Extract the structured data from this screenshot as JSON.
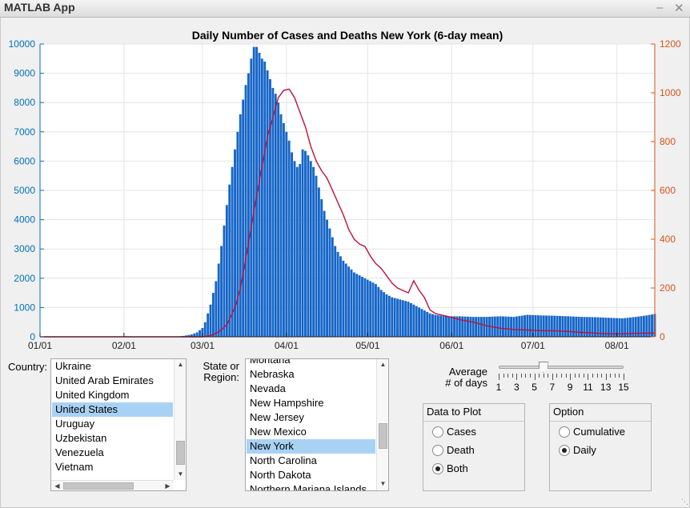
{
  "window": {
    "title": "MATLAB App",
    "minimize": "–",
    "close": "✕"
  },
  "colors": {
    "bars": "#1565c8",
    "deaths_line": "#c0103a",
    "left_axis": "#0072bd",
    "right_axis": "#d95319",
    "selected": "#a8d2f4"
  },
  "country": {
    "label": "Country:",
    "items": [
      "Ukraine",
      "United Arab Emirates",
      "United Kingdom",
      "United States",
      "Uruguay",
      "Uzbekistan",
      "Venezuela",
      "Vietnam"
    ],
    "selected": "United States"
  },
  "region": {
    "label_line1": "State or",
    "label_line2": "Region:",
    "items": [
      "Montana",
      "Nebraska",
      "Nevada",
      "New Hampshire",
      "New Jersey",
      "New Mexico",
      "New York",
      "North Carolina",
      "North Dakota",
      "Northern Mariana Islands"
    ],
    "selected": "New York"
  },
  "average": {
    "label_line1": "Average",
    "label_line2": "# of days",
    "value": 6,
    "min": 1,
    "max": 15,
    "tick_labels": [
      "1",
      "3",
      "5",
      "7",
      "9",
      "11",
      "13",
      "15"
    ]
  },
  "data_to_plot": {
    "title": "Data to Plot",
    "options": [
      "Cases",
      "Death",
      "Both"
    ],
    "selected": "Both"
  },
  "option": {
    "title": "Option",
    "options": [
      "Cumulative",
      "Daily"
    ],
    "selected": "Daily"
  },
  "chart_data": {
    "type": "bar",
    "title": "Daily Number of Cases and Deaths New York (6-day mean)",
    "xlabel": "",
    "x_ticks": [
      "01/01",
      "02/01",
      "03/01",
      "04/01",
      "05/01",
      "06/01",
      "07/01",
      "08/01"
    ],
    "x_range_days": [
      0,
      227
    ],
    "y_left": {
      "label": "",
      "range": [
        0,
        10000
      ],
      "ticks": [
        0,
        1000,
        2000,
        3000,
        4000,
        5000,
        6000,
        7000,
        8000,
        9000,
        10000
      ]
    },
    "y_right": {
      "label": "",
      "range": [
        0,
        1200
      ],
      "ticks": [
        0,
        200,
        400,
        600,
        800,
        1000,
        1200
      ]
    },
    "grid": true,
    "series": [
      {
        "type": "bar",
        "axis": "left",
        "points_day_value": [
          [
            0,
            0
          ],
          [
            50,
            0
          ],
          [
            53,
            30
          ],
          [
            56,
            80
          ],
          [
            58,
            150
          ],
          [
            60,
            300
          ],
          [
            61,
            500
          ],
          [
            62,
            800
          ],
          [
            63,
            1100
          ],
          [
            64,
            1500
          ],
          [
            65,
            1900
          ],
          [
            66,
            2500
          ],
          [
            67,
            3100
          ],
          [
            68,
            3800
          ],
          [
            69,
            4500
          ],
          [
            70,
            5200
          ],
          [
            71,
            5800
          ],
          [
            72,
            6400
          ],
          [
            73,
            7000
          ],
          [
            74,
            7600
          ],
          [
            75,
            8100
          ],
          [
            76,
            8600
          ],
          [
            77,
            9000
          ],
          [
            78,
            9500
          ],
          [
            79,
            9900
          ],
          [
            80,
            9900
          ],
          [
            81,
            9700
          ],
          [
            82,
            9500
          ],
          [
            83,
            9400
          ],
          [
            84,
            9100
          ],
          [
            85,
            8800
          ],
          [
            86,
            8500
          ],
          [
            87,
            8300
          ],
          [
            88,
            8000
          ],
          [
            89,
            7600
          ],
          [
            90,
            7300
          ],
          [
            91,
            7000
          ],
          [
            92,
            6700
          ],
          [
            93,
            6300
          ],
          [
            94,
            6000
          ],
          [
            95,
            5800
          ],
          [
            96,
            5900
          ],
          [
            97,
            6400
          ],
          [
            98,
            6350
          ],
          [
            99,
            6200
          ],
          [
            100,
            6000
          ],
          [
            101,
            5800
          ],
          [
            102,
            5500
          ],
          [
            103,
            5100
          ],
          [
            104,
            4700
          ],
          [
            105,
            4300
          ],
          [
            106,
            4000
          ],
          [
            107,
            3700
          ],
          [
            108,
            3400
          ],
          [
            109,
            3100
          ],
          [
            110,
            2900
          ],
          [
            112,
            2600
          ],
          [
            114,
            2400
          ],
          [
            116,
            2200
          ],
          [
            118,
            2100
          ],
          [
            120,
            2000
          ],
          [
            122,
            1900
          ],
          [
            124,
            1800
          ],
          [
            126,
            1600
          ],
          [
            128,
            1450
          ],
          [
            130,
            1350
          ],
          [
            132,
            1300
          ],
          [
            134,
            1250
          ],
          [
            136,
            1200
          ],
          [
            138,
            1100
          ],
          [
            140,
            1000
          ],
          [
            142,
            900
          ],
          [
            144,
            800
          ],
          [
            146,
            750
          ],
          [
            150,
            700
          ],
          [
            155,
            700
          ],
          [
            160,
            680
          ],
          [
            165,
            680
          ],
          [
            170,
            700
          ],
          [
            175,
            680
          ],
          [
            180,
            750
          ],
          [
            185,
            730
          ],
          [
            190,
            720
          ],
          [
            195,
            700
          ],
          [
            200,
            680
          ],
          [
            205,
            670
          ],
          [
            210,
            650
          ],
          [
            215,
            630
          ],
          [
            220,
            680
          ],
          [
            224,
            730
          ],
          [
            227,
            780
          ]
        ]
      },
      {
        "type": "line",
        "axis": "right",
        "points_day_value": [
          [
            0,
            0
          ],
          [
            60,
            0
          ],
          [
            63,
            5
          ],
          [
            66,
            20
          ],
          [
            69,
            50
          ],
          [
            72,
            120
          ],
          [
            74,
            200
          ],
          [
            76,
            320
          ],
          [
            78,
            450
          ],
          [
            80,
            580
          ],
          [
            82,
            700
          ],
          [
            84,
            820
          ],
          [
            86,
            900
          ],
          [
            88,
            980
          ],
          [
            90,
            1010
          ],
          [
            92,
            1015
          ],
          [
            94,
            980
          ],
          [
            96,
            920
          ],
          [
            98,
            860
          ],
          [
            100,
            780
          ],
          [
            102,
            720
          ],
          [
            104,
            680
          ],
          [
            106,
            650
          ],
          [
            108,
            600
          ],
          [
            110,
            550
          ],
          [
            112,
            500
          ],
          [
            114,
            440
          ],
          [
            116,
            400
          ],
          [
            118,
            380
          ],
          [
            120,
            370
          ],
          [
            122,
            330
          ],
          [
            124,
            300
          ],
          [
            126,
            280
          ],
          [
            128,
            250
          ],
          [
            130,
            220
          ],
          [
            132,
            200
          ],
          [
            134,
            190
          ],
          [
            136,
            180
          ],
          [
            138,
            230
          ],
          [
            140,
            190
          ],
          [
            142,
            160
          ],
          [
            144,
            110
          ],
          [
            146,
            95
          ],
          [
            150,
            85
          ],
          [
            155,
            70
          ],
          [
            160,
            60
          ],
          [
            165,
            45
          ],
          [
            170,
            35
          ],
          [
            175,
            30
          ],
          [
            180,
            28
          ],
          [
            185,
            25
          ],
          [
            190,
            25
          ],
          [
            195,
            22
          ],
          [
            200,
            18
          ],
          [
            205,
            15
          ],
          [
            210,
            12
          ],
          [
            215,
            12
          ],
          [
            220,
            14
          ],
          [
            224,
            15
          ],
          [
            227,
            15
          ]
        ]
      }
    ]
  }
}
